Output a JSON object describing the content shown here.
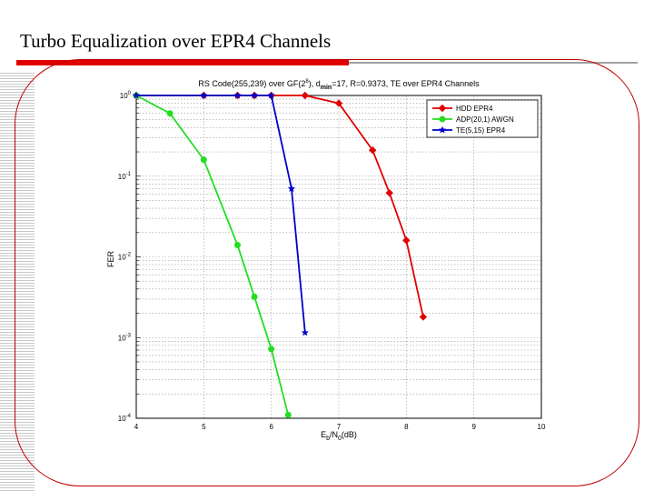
{
  "slide": {
    "title": "Turbo Equalization over EPR4 Channels"
  },
  "colors": {
    "accent_red": "#e00000",
    "frame": "#c00000",
    "series_hdd": "#e00000",
    "series_adp": "#22dd22",
    "series_te": "#0000cc"
  },
  "chart_data": {
    "type": "line",
    "title_parts": {
      "a": "RS Code(255,239) over GF(2",
      "sup": "8",
      "b": "), d",
      "sub": "min",
      "c": "=17, R=0.9373, TE over EPR4 Channels"
    },
    "xlabel_parts": {
      "a": "E",
      "sub1": "b",
      "b": "/N",
      "sub2": "0",
      "c": "(dB)"
    },
    "ylabel": "FER",
    "xlim": [
      4,
      10
    ],
    "ylim": [
      0.0001,
      1
    ],
    "yscale": "log",
    "grid": "on",
    "legend_position": "top-right",
    "x_ticks": [
      "4",
      "5",
      "6",
      "7",
      "8",
      "9",
      "10"
    ],
    "y_ticks": [
      {
        "base": "10",
        "exp": "0"
      },
      {
        "base": "10",
        "exp": "-1"
      },
      {
        "base": "10",
        "exp": "-2"
      },
      {
        "base": "10",
        "exp": "-3"
      },
      {
        "base": "10",
        "exp": "-4"
      }
    ],
    "series": [
      {
        "name": "HDD EPR4",
        "marker": "diamond",
        "x": [
          4,
          5,
          5.5,
          5.75,
          6,
          6.5,
          7,
          7.5,
          7.75,
          8,
          8.25
        ],
        "y": [
          1,
          1,
          1,
          1,
          1,
          1,
          0.8,
          0.21,
          0.062,
          0.016,
          0.0018
        ]
      },
      {
        "name": "ADP(20,1) AWGN",
        "marker": "circle",
        "x": [
          4,
          4.5,
          5,
          5.5,
          5.75,
          6,
          6.25
        ],
        "y": [
          1,
          0.6,
          0.16,
          0.014,
          0.0032,
          0.00072,
          0.00011
        ]
      },
      {
        "name": "TE(5,15) EPR4",
        "marker": "star",
        "x": [
          4,
          5,
          5.5,
          5.75,
          6,
          6.3,
          6.5
        ],
        "y": [
          1,
          1,
          1,
          1,
          1,
          0.07,
          0.00115
        ]
      }
    ]
  }
}
